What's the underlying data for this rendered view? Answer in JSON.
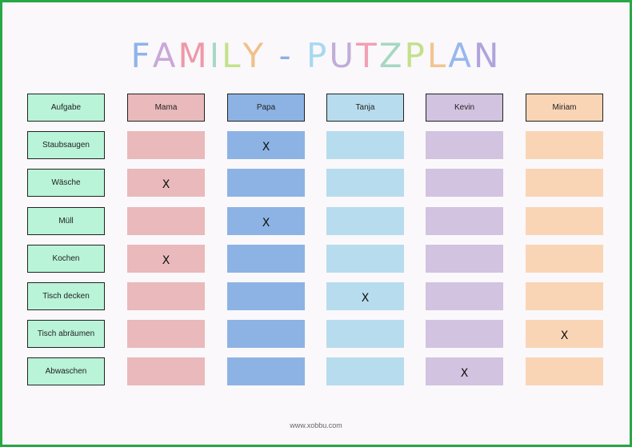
{
  "title": {
    "text": "FAMILY - PUTZPLAN",
    "letter_colors": [
      "#8fb4e8",
      "#c9a8d8",
      "#ee99a8",
      "#a8d8c8",
      "#c3e28c",
      "#f0c08a",
      "#ffffff",
      "#8ab0e0",
      "#ffffff",
      "#a8d8f0",
      "#c0aed8",
      "#f2a0b4",
      "#a6d8c2",
      "#c4e08a",
      "#f3c48e",
      "#98b8ec",
      "#b0a4dc"
    ]
  },
  "header": {
    "task_label": "Aufgabe",
    "people": [
      {
        "name": "Mama",
        "color": "#e9b9bb"
      },
      {
        "name": "Papa",
        "color": "#8db3e4"
      },
      {
        "name": "Tanja",
        "color": "#b7dced"
      },
      {
        "name": "Kevin",
        "color": "#d2c3e0"
      },
      {
        "name": "Miriam",
        "color": "#f9d5b6"
      }
    ]
  },
  "rows": [
    {
      "task": "Staubsaugen",
      "marks": [
        "",
        "X",
        "",
        "",
        ""
      ]
    },
    {
      "task": "Wäsche",
      "marks": [
        "X",
        "",
        "",
        "",
        ""
      ]
    },
    {
      "task": "Müll",
      "marks": [
        "",
        "X",
        "",
        "",
        ""
      ]
    },
    {
      "task": "Kochen",
      "marks": [
        "X",
        "",
        "",
        "",
        ""
      ]
    },
    {
      "task": "Tisch decken",
      "marks": [
        "",
        "",
        "X",
        "",
        ""
      ]
    },
    {
      "task": "Tisch abräumen",
      "marks": [
        "",
        "",
        "",
        "",
        "X"
      ]
    },
    {
      "task": "Abwaschen",
      "marks": [
        "",
        "",
        "",
        "X",
        ""
      ]
    }
  ],
  "footer": "www.xobbu.com"
}
